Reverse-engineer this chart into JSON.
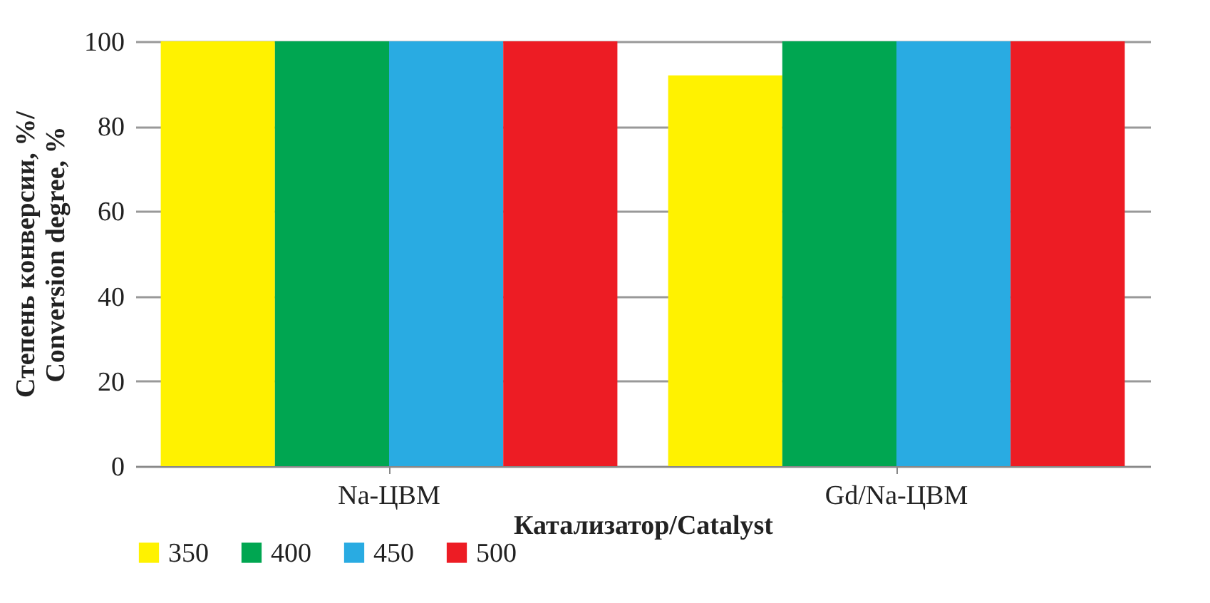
{
  "chart_data": {
    "type": "bar",
    "xlabel": "Катализатор/Catalyst",
    "ylabel": "Степень конверсии, %/\nConversion degree, %",
    "categories": [
      "Na-ЦВМ",
      "Gd/Na-ЦВМ"
    ],
    "series": [
      {
        "name": "350",
        "color": "#fff200",
        "values": [
          100,
          92
        ]
      },
      {
        "name": "400",
        "color": "#00a651",
        "values": [
          100,
          100
        ]
      },
      {
        "name": "450",
        "color": "#29abe2",
        "values": [
          100,
          100
        ]
      },
      {
        "name": "500",
        "color": "#ed1c24",
        "values": [
          100,
          100
        ]
      }
    ],
    "ylim": [
      0,
      100
    ],
    "yticks": [
      0,
      20,
      40,
      60,
      80,
      100
    ],
    "grid": "y",
    "legend": "bottom"
  }
}
